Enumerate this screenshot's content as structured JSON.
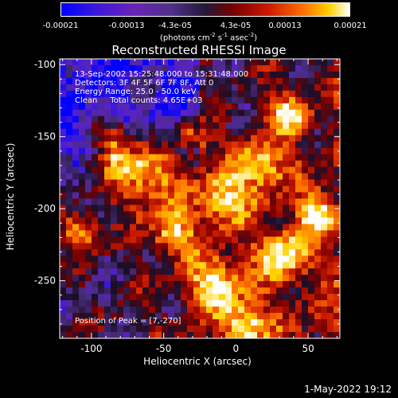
{
  "colorbar": {
    "tick_labels": [
      "-0.00021",
      "-0.00013",
      "-4.3e-05",
      "4.3e-05",
      "0.00013",
      "0.00021"
    ],
    "tick_values": [
      -0.00021,
      -0.00013,
      -4.3e-05,
      4.3e-05,
      0.00013,
      0.00021
    ],
    "range": [
      -0.00021,
      0.00021
    ],
    "unit_prefix": "(photons cm",
    "unit_exp1": "-2",
    "unit_mid1": " s",
    "unit_exp2": "-1",
    "unit_mid2": " asec",
    "unit_exp3": "-2",
    "unit_suffix": ")"
  },
  "annotations": {
    "time_range": "13-Sep-2002 15:25:48.000 to 15:31:48.000",
    "detectors": "Detectors: 3F 4F 5F 6F 7F 8F, Att 0",
    "energy_range": "Energy Range: 25.0 - 50.0 keV",
    "clean_counts": "Clean     Total counts: 4.65E+03",
    "peak": "Position of Peak = [7,-270]"
  },
  "footer": {
    "timestamp": "1-May-2022 19:12"
  },
  "chart_data": {
    "type": "heatmap",
    "title": "Reconstructed RHESSI Image",
    "xlabel": "Heliocentric X (arcsec)",
    "ylabel": "Heliocentric Y (arcsec)",
    "xlim": [
      -122,
      72
    ],
    "ylim": [
      -290,
      -96
    ],
    "x_ticks": [
      -100,
      -50,
      0,
      50
    ],
    "x_tick_labels": [
      "-100",
      "-50",
      "0",
      "50"
    ],
    "y_ticks": [
      -100,
      -150,
      -200,
      -250
    ],
    "y_tick_labels": [
      "-100",
      "-150",
      "-200",
      "-250"
    ],
    "colormap": [
      "#0000ff",
      "#5a22c8",
      "#4a2c80",
      "#1a0f28",
      "#800000",
      "#d22000",
      "#ff7a00",
      "#ffd400",
      "#ffffff"
    ],
    "grid": false,
    "peak": [
      7,
      -270
    ]
  }
}
